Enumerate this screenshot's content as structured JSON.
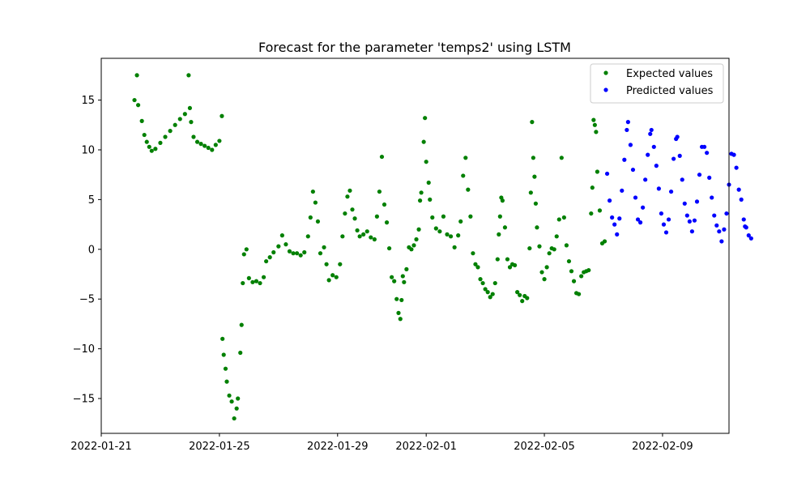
{
  "chart_data": {
    "type": "scatter",
    "title": "Forecast for the parameter 'temps2' using LSTM",
    "xlabel": "",
    "ylabel": "",
    "x_type": "date",
    "xlim": [
      "2022-01-21T00:00",
      "2022-02-11T06:00"
    ],
    "ylim": [
      -18.5,
      19.2
    ],
    "x_ticks": [
      "2022-01-21",
      "2022-01-25",
      "2022-01-29",
      "2022-02-01",
      "2022-02-05",
      "2022-02-09"
    ],
    "y_ticks": [
      -15,
      -10,
      -5,
      0,
      5,
      10,
      15
    ],
    "grid": false,
    "legend_position": "top-right",
    "series": [
      {
        "name": "Expected values",
        "color": "#008000",
        "points": [
          [
            "2022-01-22T03:00",
            15.0
          ],
          [
            "2022-01-22T05:00",
            17.5
          ],
          [
            "2022-01-22T06:00",
            14.5
          ],
          [
            "2022-01-22T09:00",
            12.9
          ],
          [
            "2022-01-22T11:00",
            11.5
          ],
          [
            "2022-01-22T13:00",
            10.8
          ],
          [
            "2022-01-22T15:00",
            10.3
          ],
          [
            "2022-01-22T17:00",
            9.9
          ],
          [
            "2022-01-22T20:00",
            10.1
          ],
          [
            "2022-01-23T00:00",
            10.7
          ],
          [
            "2022-01-23T04:00",
            11.3
          ],
          [
            "2022-01-23T08:00",
            11.9
          ],
          [
            "2022-01-23T12:00",
            12.5
          ],
          [
            "2022-01-23T16:00",
            13.1
          ],
          [
            "2022-01-23T20:00",
            13.6
          ],
          [
            "2022-01-23T23:00",
            17.5
          ],
          [
            "2022-01-24T00:00",
            14.2
          ],
          [
            "2022-01-24T01:00",
            12.8
          ],
          [
            "2022-01-24T03:00",
            11.3
          ],
          [
            "2022-01-24T06:00",
            10.8
          ],
          [
            "2022-01-24T09:00",
            10.6
          ],
          [
            "2022-01-24T12:00",
            10.4
          ],
          [
            "2022-01-24T15:00",
            10.2
          ],
          [
            "2022-01-24T18:00",
            10.0
          ],
          [
            "2022-01-24T21:00",
            10.5
          ],
          [
            "2022-01-25T00:00",
            10.9
          ],
          [
            "2022-01-25T02:00",
            13.4
          ],
          [
            "2022-01-25T02:30",
            -9.0
          ],
          [
            "2022-01-25T03:30",
            -10.6
          ],
          [
            "2022-01-25T05:00",
            -12.0
          ],
          [
            "2022-01-25T06:00",
            -13.3
          ],
          [
            "2022-01-25T08:00",
            -14.7
          ],
          [
            "2022-01-25T10:00",
            -15.3
          ],
          [
            "2022-01-25T12:00",
            -17.0
          ],
          [
            "2022-01-25T14:00",
            -16.0
          ],
          [
            "2022-01-25T15:00",
            -15.0
          ],
          [
            "2022-01-25T17:00",
            -10.4
          ],
          [
            "2022-01-25T18:00",
            -7.6
          ],
          [
            "2022-01-25T19:00",
            -3.4
          ],
          [
            "2022-01-25T20:00",
            -0.5
          ],
          [
            "2022-01-25T22:00",
            0.0
          ],
          [
            "2022-01-26T00:00",
            -2.9
          ],
          [
            "2022-01-26T03:00",
            -3.3
          ],
          [
            "2022-01-26T06:00",
            -3.2
          ],
          [
            "2022-01-26T09:00",
            -3.4
          ],
          [
            "2022-01-26T12:00",
            -2.8
          ],
          [
            "2022-01-26T14:00",
            -1.2
          ],
          [
            "2022-01-26T17:00",
            -0.8
          ],
          [
            "2022-01-26T20:00",
            -0.3
          ],
          [
            "2022-01-27T00:00",
            0.3
          ],
          [
            "2022-01-27T03:00",
            1.4
          ],
          [
            "2022-01-27T06:00",
            0.5
          ],
          [
            "2022-01-27T09:00",
            -0.2
          ],
          [
            "2022-01-27T12:00",
            -0.4
          ],
          [
            "2022-01-27T15:00",
            -0.4
          ],
          [
            "2022-01-27T18:00",
            -0.6
          ],
          [
            "2022-01-27T21:00",
            -0.3
          ],
          [
            "2022-01-28T00:00",
            1.3
          ],
          [
            "2022-01-28T02:00",
            3.2
          ],
          [
            "2022-01-28T04:00",
            5.8
          ],
          [
            "2022-01-28T06:00",
            4.7
          ],
          [
            "2022-01-28T08:00",
            2.8
          ],
          [
            "2022-01-28T10:00",
            -0.4
          ],
          [
            "2022-01-28T13:00",
            0.2
          ],
          [
            "2022-01-28T15:00",
            -1.5
          ],
          [
            "2022-01-28T17:00",
            -3.1
          ],
          [
            "2022-01-28T20:00",
            -2.6
          ],
          [
            "2022-01-28T23:00",
            -2.8
          ],
          [
            "2022-01-29T02:00",
            -1.5
          ],
          [
            "2022-01-29T04:00",
            1.3
          ],
          [
            "2022-01-29T06:00",
            3.6
          ],
          [
            "2022-01-29T08:00",
            5.3
          ],
          [
            "2022-01-29T10:00",
            5.9
          ],
          [
            "2022-01-29T12:00",
            4.0
          ],
          [
            "2022-01-29T14:00",
            3.1
          ],
          [
            "2022-01-29T16:00",
            1.9
          ],
          [
            "2022-01-29T18:00",
            1.3
          ],
          [
            "2022-01-29T21:00",
            1.5
          ],
          [
            "2022-01-30T00:00",
            1.8
          ],
          [
            "2022-01-30T03:00",
            1.2
          ],
          [
            "2022-01-30T06:00",
            1.0
          ],
          [
            "2022-01-30T08:00",
            3.3
          ],
          [
            "2022-01-30T10:00",
            5.8
          ],
          [
            "2022-01-30T12:00",
            9.3
          ],
          [
            "2022-01-30T14:00",
            4.5
          ],
          [
            "2022-01-30T16:00",
            2.7
          ],
          [
            "2022-01-30T18:00",
            0.1
          ],
          [
            "2022-01-30T20:00",
            -2.8
          ],
          [
            "2022-01-30T22:00",
            -3.2
          ],
          [
            "2022-01-31T00:00",
            -5.0
          ],
          [
            "2022-01-31T01:30",
            -6.4
          ],
          [
            "2022-01-31T03:00",
            -7.0
          ],
          [
            "2022-01-31T04:00",
            -5.1
          ],
          [
            "2022-01-31T05:00",
            -2.7
          ],
          [
            "2022-01-31T06:00",
            -3.3
          ],
          [
            "2022-01-31T08:00",
            -2.0
          ],
          [
            "2022-01-31T10:00",
            0.2
          ],
          [
            "2022-01-31T12:00",
            0.0
          ],
          [
            "2022-01-31T14:00",
            0.4
          ],
          [
            "2022-01-31T16:00",
            1.0
          ],
          [
            "2022-01-31T18:00",
            2.0
          ],
          [
            "2022-01-31T19:00",
            4.9
          ],
          [
            "2022-01-31T20:00",
            5.7
          ],
          [
            "2022-01-31T22:00",
            10.8
          ],
          [
            "2022-01-31T23:00",
            13.2
          ],
          [
            "2022-02-01T00:00",
            8.8
          ],
          [
            "2022-02-01T02:00",
            6.7
          ],
          [
            "2022-02-01T03:00",
            5.0
          ],
          [
            "2022-02-01T05:00",
            3.2
          ],
          [
            "2022-02-01T08:00",
            2.1
          ],
          [
            "2022-02-01T11:00",
            1.8
          ],
          [
            "2022-02-01T14:00",
            3.3
          ],
          [
            "2022-02-01T17:00",
            1.5
          ],
          [
            "2022-02-01T20:00",
            1.3
          ],
          [
            "2022-02-01T23:00",
            0.2
          ],
          [
            "2022-02-02T02:00",
            1.4
          ],
          [
            "2022-02-02T04:00",
            2.8
          ],
          [
            "2022-02-02T06:00",
            7.4
          ],
          [
            "2022-02-02T08:00",
            9.2
          ],
          [
            "2022-02-02T10:00",
            6.0
          ],
          [
            "2022-02-02T12:00",
            3.3
          ],
          [
            "2022-02-02T14:00",
            -0.4
          ],
          [
            "2022-02-02T16:00",
            -1.5
          ],
          [
            "2022-02-02T18:00",
            -1.8
          ],
          [
            "2022-02-02T20:00",
            -3.0
          ],
          [
            "2022-02-02T22:00",
            -3.4
          ],
          [
            "2022-02-03T00:00",
            -4.0
          ],
          [
            "2022-02-03T02:00",
            -4.3
          ],
          [
            "2022-02-03T04:00",
            -4.8
          ],
          [
            "2022-02-03T06:00",
            -4.5
          ],
          [
            "2022-02-03T08:00",
            -3.4
          ],
          [
            "2022-02-03T10:00",
            -1.0
          ],
          [
            "2022-02-03T11:00",
            1.5
          ],
          [
            "2022-02-03T12:00",
            3.3
          ],
          [
            "2022-02-03T13:00",
            5.2
          ],
          [
            "2022-02-03T14:00",
            4.9
          ],
          [
            "2022-02-03T16:00",
            2.2
          ],
          [
            "2022-02-03T18:00",
            -1.0
          ],
          [
            "2022-02-03T20:00",
            -1.8
          ],
          [
            "2022-02-03T22:00",
            -1.5
          ],
          [
            "2022-02-04T00:00",
            -1.6
          ],
          [
            "2022-02-04T02:00",
            -4.3
          ],
          [
            "2022-02-04T04:00",
            -4.6
          ],
          [
            "2022-02-04T06:00",
            -5.2
          ],
          [
            "2022-02-04T08:00",
            -4.7
          ],
          [
            "2022-02-04T10:00",
            -4.9
          ],
          [
            "2022-02-04T12:00",
            0.1
          ],
          [
            "2022-02-04T13:00",
            5.7
          ],
          [
            "2022-02-04T14:00",
            12.8
          ],
          [
            "2022-02-04T15:00",
            9.2
          ],
          [
            "2022-02-04T16:00",
            7.3
          ],
          [
            "2022-02-04T17:00",
            4.6
          ],
          [
            "2022-02-04T18:00",
            2.2
          ],
          [
            "2022-02-04T20:00",
            0.3
          ],
          [
            "2022-02-04T22:00",
            -2.3
          ],
          [
            "2022-02-05T00:00",
            -3.0
          ],
          [
            "2022-02-05T02:00",
            -1.8
          ],
          [
            "2022-02-05T04:00",
            -0.4
          ],
          [
            "2022-02-05T06:00",
            0.1
          ],
          [
            "2022-02-05T08:00",
            0.0
          ],
          [
            "2022-02-05T10:00",
            1.3
          ],
          [
            "2022-02-05T12:00",
            3.0
          ],
          [
            "2022-02-05T14:00",
            9.2
          ],
          [
            "2022-02-05T16:00",
            3.2
          ],
          [
            "2022-02-05T18:00",
            0.4
          ],
          [
            "2022-02-05T20:00",
            -1.2
          ],
          [
            "2022-02-05T22:00",
            -2.2
          ],
          [
            "2022-02-06T00:00",
            -3.2
          ],
          [
            "2022-02-06T02:00",
            -4.4
          ],
          [
            "2022-02-06T04:00",
            -4.5
          ],
          [
            "2022-02-06T06:00",
            -2.7
          ],
          [
            "2022-02-06T08:00",
            -2.3
          ],
          [
            "2022-02-06T10:00",
            -2.2
          ],
          [
            "2022-02-06T12:00",
            -2.1
          ],
          [
            "2022-02-06T14:00",
            3.6
          ],
          [
            "2022-02-06T15:00",
            6.2
          ],
          [
            "2022-02-06T16:00",
            13.0
          ],
          [
            "2022-02-06T17:00",
            12.5
          ],
          [
            "2022-02-06T18:00",
            11.8
          ],
          [
            "2022-02-06T19:00",
            7.8
          ],
          [
            "2022-02-06T21:00",
            3.9
          ],
          [
            "2022-02-06T23:00",
            0.6
          ],
          [
            "2022-02-07T01:00",
            0.8
          ]
        ]
      },
      {
        "name": "Predicted values",
        "color": "#0000ff",
        "points": [
          [
            "2022-02-07T03:00",
            7.6
          ],
          [
            "2022-02-07T05:00",
            4.9
          ],
          [
            "2022-02-07T07:00",
            3.2
          ],
          [
            "2022-02-07T09:00",
            2.5
          ],
          [
            "2022-02-07T11:00",
            1.5
          ],
          [
            "2022-02-07T13:00",
            3.1
          ],
          [
            "2022-02-07T15:00",
            5.9
          ],
          [
            "2022-02-07T17:00",
            9.0
          ],
          [
            "2022-02-07T19:00",
            12.0
          ],
          [
            "2022-02-07T20:00",
            12.8
          ],
          [
            "2022-02-07T22:00",
            10.5
          ],
          [
            "2022-02-08T00:00",
            8.0
          ],
          [
            "2022-02-08T02:00",
            5.2
          ],
          [
            "2022-02-08T04:00",
            3.0
          ],
          [
            "2022-02-08T06:00",
            2.7
          ],
          [
            "2022-02-08T08:00",
            4.2
          ],
          [
            "2022-02-08T10:00",
            7.0
          ],
          [
            "2022-02-08T12:00",
            9.5
          ],
          [
            "2022-02-08T14:00",
            11.6
          ],
          [
            "2022-02-08T15:00",
            12.0
          ],
          [
            "2022-02-08T17:00",
            10.3
          ],
          [
            "2022-02-08T19:00",
            8.4
          ],
          [
            "2022-02-08T21:00",
            6.1
          ],
          [
            "2022-02-08T23:00",
            3.6
          ],
          [
            "2022-02-09T01:00",
            2.5
          ],
          [
            "2022-02-09T03:00",
            1.7
          ],
          [
            "2022-02-09T05:00",
            3.0
          ],
          [
            "2022-02-09T07:00",
            5.8
          ],
          [
            "2022-02-09T09:00",
            9.1
          ],
          [
            "2022-02-09T11:00",
            11.1
          ],
          [
            "2022-02-09T12:00",
            11.3
          ],
          [
            "2022-02-09T14:00",
            9.4
          ],
          [
            "2022-02-09T16:00",
            7.0
          ],
          [
            "2022-02-09T18:00",
            4.6
          ],
          [
            "2022-02-09T20:00",
            3.4
          ],
          [
            "2022-02-09T22:00",
            2.8
          ],
          [
            "2022-02-10T00:00",
            1.8
          ],
          [
            "2022-02-10T02:00",
            2.9
          ],
          [
            "2022-02-10T04:00",
            4.8
          ],
          [
            "2022-02-10T06:00",
            7.5
          ],
          [
            "2022-02-10T08:00",
            10.3
          ],
          [
            "2022-02-10T10:00",
            10.3
          ],
          [
            "2022-02-10T12:00",
            9.7
          ],
          [
            "2022-02-10T14:00",
            7.2
          ],
          [
            "2022-02-10T16:00",
            5.2
          ],
          [
            "2022-02-10T18:00",
            3.4
          ],
          [
            "2022-02-10T20:00",
            2.4
          ],
          [
            "2022-02-10T22:00",
            1.8
          ],
          [
            "2022-02-11T00:00",
            0.8
          ],
          [
            "2022-02-11T02:00",
            2.0
          ],
          [
            "2022-02-11T04:00",
            3.6
          ],
          [
            "2022-02-11T06:00",
            6.5
          ],
          [
            "2022-02-11T08:00",
            9.6
          ],
          [
            "2022-02-11T10:00",
            9.5
          ],
          [
            "2022-02-11T12:00",
            8.2
          ],
          [
            "2022-02-11T14:00",
            6.0
          ],
          [
            "2022-02-11T16:00",
            5.0
          ],
          [
            "2022-02-11T18:00",
            3.0
          ],
          [
            "2022-02-11T19:00",
            2.3
          ],
          [
            "2022-02-11T20:00",
            2.2
          ],
          [
            "2022-02-11T22:00",
            1.4
          ],
          [
            "2022-02-12T00:00",
            1.1
          ]
        ]
      }
    ]
  }
}
